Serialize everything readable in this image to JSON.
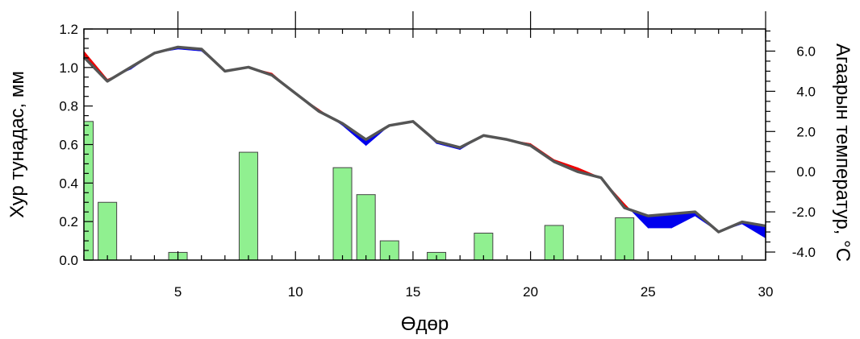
{
  "chart_data": {
    "type": "bar+line",
    "xlabel": "Өдөр",
    "ylabel_left": "Хур тунадас, мм",
    "ylabel_right": "Агаарын температур, °C",
    "xlim": [
      1,
      30
    ],
    "ylim_left": [
      0,
      1.2
    ],
    "ylim_right": [
      -4.4,
      7.1
    ],
    "x_ticks": [
      5,
      10,
      15,
      20,
      25,
      30
    ],
    "y_left_ticks": [
      "0.0",
      "0.2",
      "0.4",
      "0.6",
      "0.8",
      "1.0",
      "1.2"
    ],
    "y_right_ticks": [
      "-4.0",
      "-2.0",
      "0.0",
      "2.0",
      "4.0",
      "6.0"
    ],
    "bars": {
      "name": "precipitation",
      "color": "#90f090",
      "x": [
        1,
        2,
        5,
        8,
        12,
        13,
        14,
        16,
        18,
        21,
        24
      ],
      "values": [
        0.72,
        0.3,
        0.04,
        0.56,
        0.48,
        0.34,
        0.1,
        0.04,
        0.14,
        0.18,
        0.22
      ]
    },
    "temperature": {
      "x": [
        1,
        2,
        3,
        4,
        5,
        6,
        7,
        8,
        9,
        10,
        11,
        12,
        13,
        14,
        15,
        16,
        17,
        18,
        19,
        20,
        21,
        22,
        23,
        24,
        25,
        26,
        27,
        28,
        29,
        30
      ],
      "observed": [
        6.0,
        4.6,
        5.1,
        5.9,
        6.1,
        6.0,
        5.0,
        5.2,
        4.9,
        3.9,
        3.1,
        2.3,
        1.3,
        2.3,
        2.5,
        1.4,
        1.1,
        1.8,
        1.6,
        1.4,
        0.6,
        0.2,
        -0.3,
        -1.6,
        -2.8,
        -2.8,
        -2.2,
        -3.0,
        -2.6,
        -3.3
      ],
      "baseline": [
        5.7,
        4.5,
        5.2,
        5.9,
        6.2,
        6.1,
        5.0,
        5.2,
        4.8,
        3.9,
        3.0,
        2.4,
        1.6,
        2.3,
        2.5,
        1.5,
        1.2,
        1.8,
        1.6,
        1.3,
        0.5,
        0.0,
        -0.3,
        -1.8,
        -2.2,
        -2.1,
        -2.0,
        -3.0,
        -2.5,
        -2.7
      ],
      "warm_color": "#ee0000",
      "cold_color": "#0000ee",
      "line_color": "#555555"
    }
  }
}
